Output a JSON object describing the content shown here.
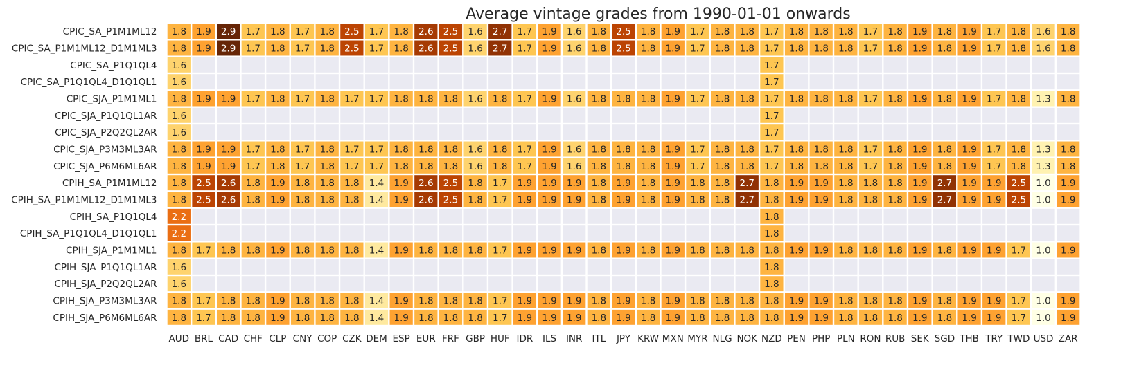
{
  "chart_data": {
    "type": "heatmap",
    "title": "Average vintage grades from 1990-01-01 onwards",
    "xlabel": "",
    "ylabel": "",
    "colormap": "YlOrBr",
    "empty_cell_color": "#eaeaf2",
    "grid_color": "#ffffff",
    "value_range": [
      1.0,
      2.9
    ],
    "columns": [
      "AUD",
      "BRL",
      "CAD",
      "CHF",
      "CLP",
      "CNY",
      "COP",
      "CZK",
      "DEM",
      "ESP",
      "EUR",
      "FRF",
      "GBP",
      "HUF",
      "IDR",
      "ILS",
      "INR",
      "ITL",
      "JPY",
      "KRW",
      "MXN",
      "MYR",
      "NLG",
      "NOK",
      "NZD",
      "PEN",
      "PHP",
      "PLN",
      "RON",
      "RUB",
      "SEK",
      "SGD",
      "THB",
      "TRY",
      "TWD",
      "USD",
      "ZAR"
    ],
    "rows": [
      "CPIC_SA_P1M1ML12",
      "CPIC_SA_P1M1ML12_D1M1ML3",
      "CPIC_SA_P1Q1QL4",
      "CPIC_SA_P1Q1QL4_D1Q1QL1",
      "CPIC_SJA_P1M1ML1",
      "CPIC_SJA_P1Q1QL1AR",
      "CPIC_SJA_P2Q2QL2AR",
      "CPIC_SJA_P3M3ML3AR",
      "CPIC_SJA_P6M6ML6AR",
      "CPIH_SA_P1M1ML12",
      "CPIH_SA_P1M1ML12_D1M1ML3",
      "CPIH_SA_P1Q1QL4",
      "CPIH_SA_P1Q1QL4_D1Q1QL1",
      "CPIH_SJA_P1M1ML1",
      "CPIH_SJA_P1Q1QL1AR",
      "CPIH_SJA_P2Q2QL2AR",
      "CPIH_SJA_P3M3ML3AR",
      "CPIH_SJA_P6M6ML6AR"
    ],
    "values": [
      [
        1.8,
        1.9,
        2.9,
        1.7,
        1.8,
        1.7,
        1.8,
        2.5,
        1.7,
        1.8,
        2.6,
        2.5,
        1.6,
        2.7,
        1.7,
        1.9,
        1.6,
        1.8,
        2.5,
        1.8,
        1.9,
        1.7,
        1.8,
        1.8,
        1.7,
        1.8,
        1.8,
        1.8,
        1.7,
        1.8,
        1.9,
        1.8,
        1.9,
        1.7,
        1.8,
        1.6,
        1.8
      ],
      [
        1.8,
        1.9,
        2.9,
        1.7,
        1.8,
        1.7,
        1.8,
        2.5,
        1.7,
        1.8,
        2.6,
        2.5,
        1.6,
        2.7,
        1.7,
        1.9,
        1.6,
        1.8,
        2.5,
        1.8,
        1.9,
        1.7,
        1.8,
        1.8,
        1.7,
        1.8,
        1.8,
        1.8,
        1.7,
        1.8,
        1.9,
        1.8,
        1.9,
        1.7,
        1.8,
        1.6,
        1.8
      ],
      [
        1.6,
        null,
        null,
        null,
        null,
        null,
        null,
        null,
        null,
        null,
        null,
        null,
        null,
        null,
        null,
        null,
        null,
        null,
        null,
        null,
        null,
        null,
        null,
        null,
        1.7,
        null,
        null,
        null,
        null,
        null,
        null,
        null,
        null,
        null,
        null,
        null,
        null
      ],
      [
        1.6,
        null,
        null,
        null,
        null,
        null,
        null,
        null,
        null,
        null,
        null,
        null,
        null,
        null,
        null,
        null,
        null,
        null,
        null,
        null,
        null,
        null,
        null,
        null,
        1.7,
        null,
        null,
        null,
        null,
        null,
        null,
        null,
        null,
        null,
        null,
        null,
        null
      ],
      [
        1.8,
        1.9,
        1.9,
        1.7,
        1.8,
        1.7,
        1.8,
        1.7,
        1.7,
        1.8,
        1.8,
        1.8,
        1.6,
        1.8,
        1.7,
        1.9,
        1.6,
        1.8,
        1.8,
        1.8,
        1.9,
        1.7,
        1.8,
        1.8,
        1.7,
        1.8,
        1.8,
        1.8,
        1.7,
        1.8,
        1.9,
        1.8,
        1.9,
        1.7,
        1.8,
        1.3,
        1.8
      ],
      [
        1.6,
        null,
        null,
        null,
        null,
        null,
        null,
        null,
        null,
        null,
        null,
        null,
        null,
        null,
        null,
        null,
        null,
        null,
        null,
        null,
        null,
        null,
        null,
        null,
        1.7,
        null,
        null,
        null,
        null,
        null,
        null,
        null,
        null,
        null,
        null,
        null,
        null
      ],
      [
        1.6,
        null,
        null,
        null,
        null,
        null,
        null,
        null,
        null,
        null,
        null,
        null,
        null,
        null,
        null,
        null,
        null,
        null,
        null,
        null,
        null,
        null,
        null,
        null,
        1.7,
        null,
        null,
        null,
        null,
        null,
        null,
        null,
        null,
        null,
        null,
        null,
        null
      ],
      [
        1.8,
        1.9,
        1.9,
        1.7,
        1.8,
        1.7,
        1.8,
        1.7,
        1.7,
        1.8,
        1.8,
        1.8,
        1.6,
        1.8,
        1.7,
        1.9,
        1.6,
        1.8,
        1.8,
        1.8,
        1.9,
        1.7,
        1.8,
        1.8,
        1.7,
        1.8,
        1.8,
        1.8,
        1.7,
        1.8,
        1.9,
        1.8,
        1.9,
        1.7,
        1.8,
        1.3,
        1.8
      ],
      [
        1.8,
        1.9,
        1.9,
        1.7,
        1.8,
        1.7,
        1.8,
        1.7,
        1.7,
        1.8,
        1.8,
        1.8,
        1.6,
        1.8,
        1.7,
        1.9,
        1.6,
        1.8,
        1.8,
        1.8,
        1.9,
        1.7,
        1.8,
        1.8,
        1.7,
        1.8,
        1.8,
        1.8,
        1.7,
        1.8,
        1.9,
        1.8,
        1.9,
        1.7,
        1.8,
        1.3,
        1.8
      ],
      [
        1.8,
        2.5,
        2.6,
        1.8,
        1.9,
        1.8,
        1.8,
        1.8,
        1.4,
        1.9,
        2.6,
        2.5,
        1.8,
        1.7,
        1.9,
        1.9,
        1.9,
        1.8,
        1.9,
        1.8,
        1.9,
        1.8,
        1.8,
        2.7,
        1.8,
        1.9,
        1.9,
        1.8,
        1.8,
        1.8,
        1.9,
        2.7,
        1.9,
        1.9,
        2.5,
        1.0,
        1.9
      ],
      [
        1.8,
        2.5,
        2.6,
        1.8,
        1.9,
        1.8,
        1.8,
        1.8,
        1.4,
        1.9,
        2.6,
        2.5,
        1.8,
        1.7,
        1.9,
        1.9,
        1.9,
        1.8,
        1.9,
        1.8,
        1.9,
        1.8,
        1.8,
        2.7,
        1.8,
        1.9,
        1.9,
        1.8,
        1.8,
        1.8,
        1.9,
        2.7,
        1.9,
        1.9,
        2.5,
        1.0,
        1.9
      ],
      [
        2.2,
        null,
        null,
        null,
        null,
        null,
        null,
        null,
        null,
        null,
        null,
        null,
        null,
        null,
        null,
        null,
        null,
        null,
        null,
        null,
        null,
        null,
        null,
        null,
        1.8,
        null,
        null,
        null,
        null,
        null,
        null,
        null,
        null,
        null,
        null,
        null,
        null
      ],
      [
        2.2,
        null,
        null,
        null,
        null,
        null,
        null,
        null,
        null,
        null,
        null,
        null,
        null,
        null,
        null,
        null,
        null,
        null,
        null,
        null,
        null,
        null,
        null,
        null,
        1.8,
        null,
        null,
        null,
        null,
        null,
        null,
        null,
        null,
        null,
        null,
        null,
        null
      ],
      [
        1.8,
        1.7,
        1.8,
        1.8,
        1.9,
        1.8,
        1.8,
        1.8,
        1.4,
        1.9,
        1.8,
        1.8,
        1.8,
        1.7,
        1.9,
        1.9,
        1.9,
        1.8,
        1.9,
        1.8,
        1.9,
        1.8,
        1.8,
        1.8,
        1.8,
        1.9,
        1.9,
        1.8,
        1.8,
        1.8,
        1.9,
        1.8,
        1.9,
        1.9,
        1.7,
        1.0,
        1.9
      ],
      [
        1.6,
        null,
        null,
        null,
        null,
        null,
        null,
        null,
        null,
        null,
        null,
        null,
        null,
        null,
        null,
        null,
        null,
        null,
        null,
        null,
        null,
        null,
        null,
        null,
        1.8,
        null,
        null,
        null,
        null,
        null,
        null,
        null,
        null,
        null,
        null,
        null,
        null
      ],
      [
        1.6,
        null,
        null,
        null,
        null,
        null,
        null,
        null,
        null,
        null,
        null,
        null,
        null,
        null,
        null,
        null,
        null,
        null,
        null,
        null,
        null,
        null,
        null,
        null,
        1.8,
        null,
        null,
        null,
        null,
        null,
        null,
        null,
        null,
        null,
        null,
        null,
        null
      ],
      [
        1.8,
        1.7,
        1.8,
        1.8,
        1.9,
        1.8,
        1.8,
        1.8,
        1.4,
        1.9,
        1.8,
        1.8,
        1.8,
        1.7,
        1.9,
        1.9,
        1.9,
        1.8,
        1.9,
        1.8,
        1.9,
        1.8,
        1.8,
        1.8,
        1.8,
        1.9,
        1.9,
        1.8,
        1.8,
        1.8,
        1.9,
        1.8,
        1.9,
        1.9,
        1.7,
        1.0,
        1.9
      ],
      [
        1.8,
        1.7,
        1.8,
        1.8,
        1.9,
        1.8,
        1.8,
        1.8,
        1.4,
        1.9,
        1.8,
        1.8,
        1.8,
        1.7,
        1.9,
        1.9,
        1.9,
        1.8,
        1.9,
        1.8,
        1.9,
        1.8,
        1.8,
        1.8,
        1.8,
        1.9,
        1.9,
        1.8,
        1.8,
        1.8,
        1.9,
        1.8,
        1.9,
        1.9,
        1.7,
        1.0,
        1.9
      ]
    ]
  }
}
